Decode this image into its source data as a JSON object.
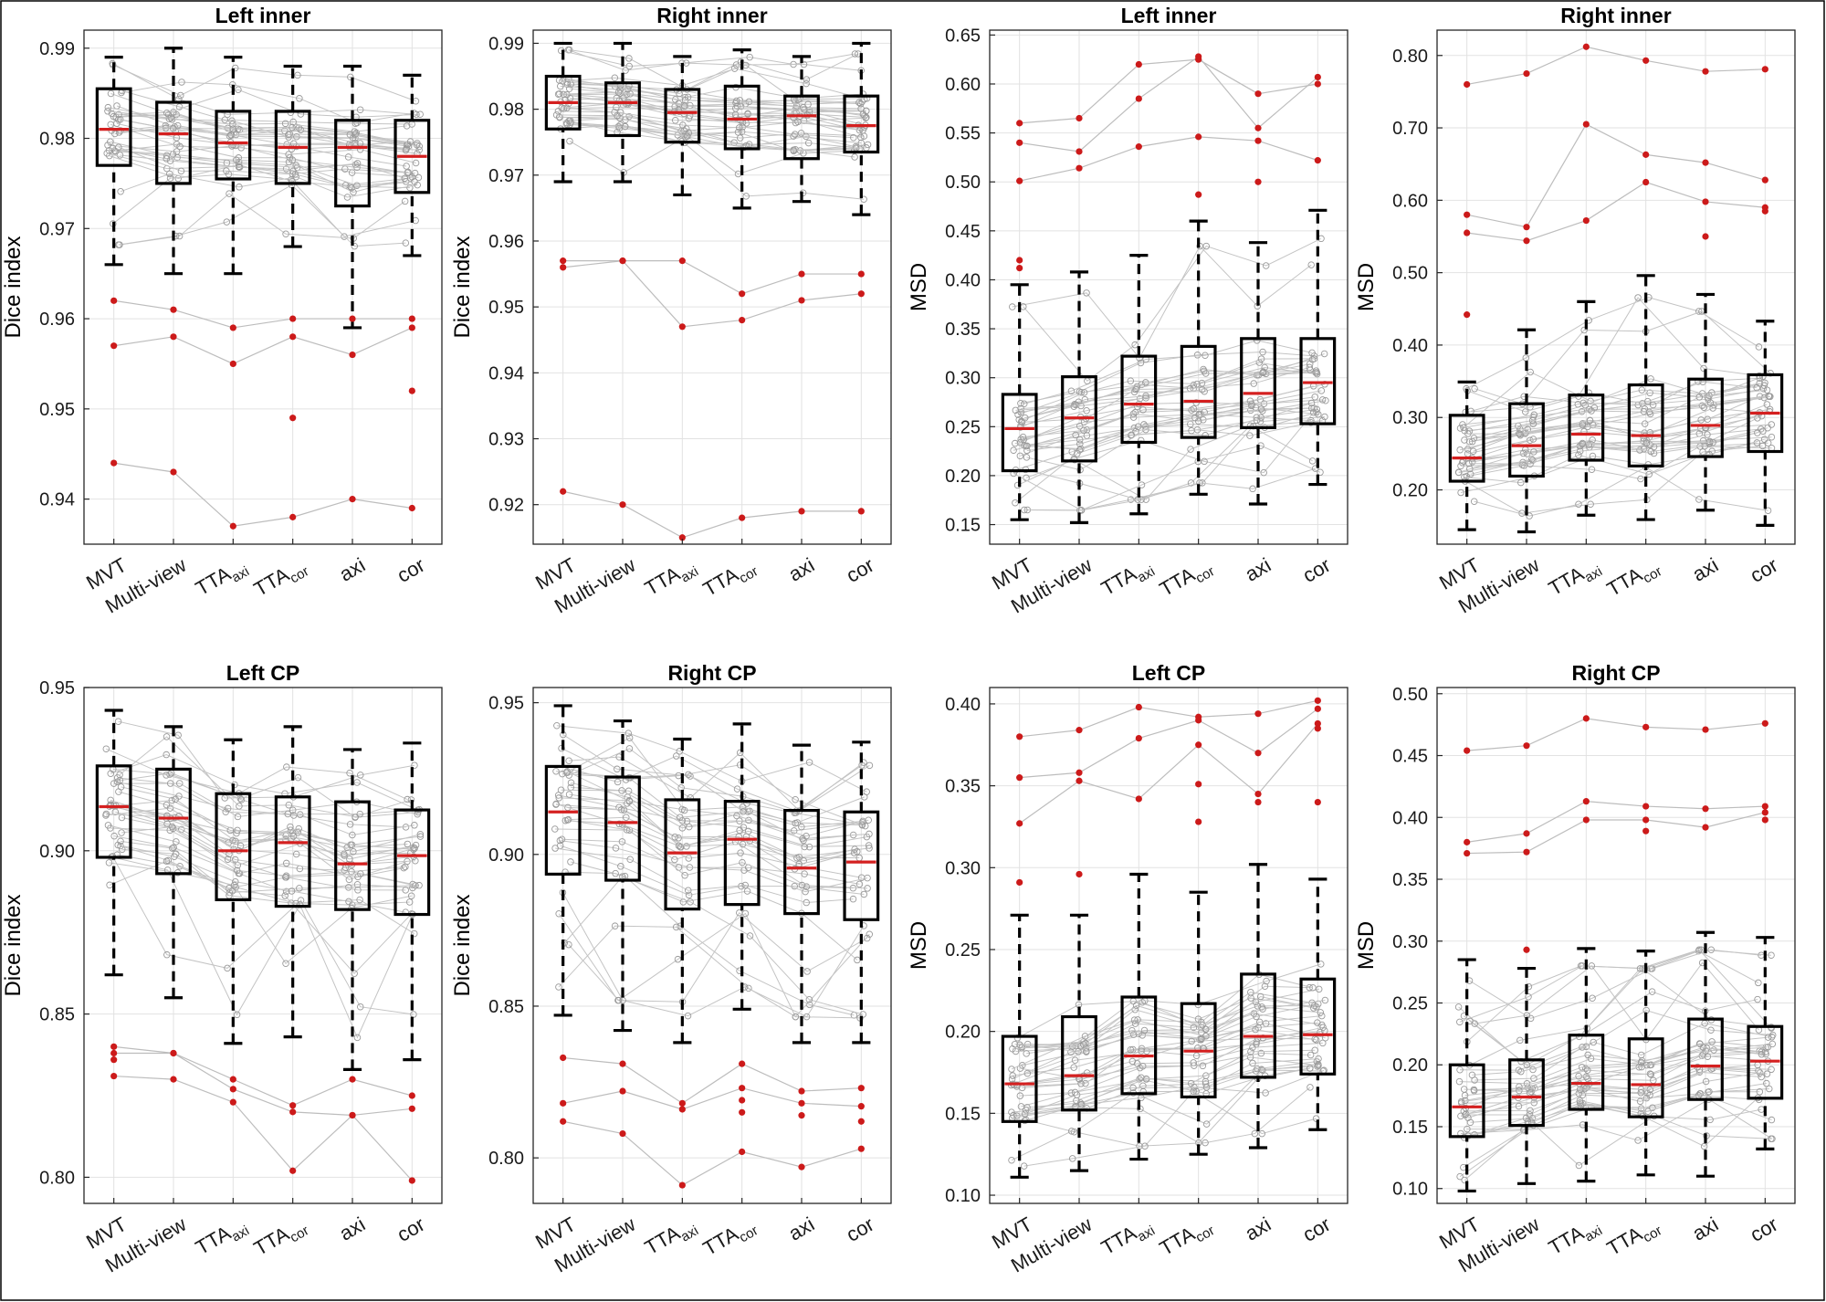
{
  "figure": {
    "frame": true
  },
  "chart_data": [
    {
      "type": "box",
      "title": "Left inner",
      "ylabel": "Dice index",
      "ylim": [
        0.935,
        0.992
      ],
      "yticks": [
        "0.94",
        "0.95",
        "0.96",
        "0.97",
        "0.98",
        "0.99"
      ],
      "categories": [
        {
          "base": "MVT",
          "sub": ""
        },
        {
          "base": "Multi-view",
          "sub": ""
        },
        {
          "base": "TTA",
          "sub": "axi"
        },
        {
          "base": "TTA",
          "sub": "cor"
        },
        {
          "base": "axi",
          "sub": ""
        },
        {
          "base": "cor",
          "sub": ""
        }
      ],
      "boxes": [
        {
          "low": 0.966,
          "q1": 0.977,
          "median": 0.981,
          "q3": 0.9855,
          "high": 0.989
        },
        {
          "low": 0.965,
          "q1": 0.975,
          "median": 0.9805,
          "q3": 0.984,
          "high": 0.99
        },
        {
          "low": 0.965,
          "q1": 0.9755,
          "median": 0.9795,
          "q3": 0.983,
          "high": 0.989
        },
        {
          "low": 0.968,
          "q1": 0.975,
          "median": 0.979,
          "q3": 0.983,
          "high": 0.988
        },
        {
          "low": 0.959,
          "q1": 0.9725,
          "median": 0.979,
          "q3": 0.982,
          "high": 0.988
        },
        {
          "low": 0.967,
          "q1": 0.974,
          "median": 0.978,
          "q3": 0.982,
          "high": 0.987
        }
      ],
      "outlier_series": [
        [
          0.962,
          0.961,
          0.959,
          0.96,
          0.96,
          0.96
        ],
        [
          0.957,
          0.958,
          0.955,
          0.958,
          0.956,
          0.959
        ],
        [
          0.944,
          0.943,
          0.937,
          0.938,
          0.94,
          0.939
        ]
      ],
      "extra_outliers": [
        [
          3,
          0.949
        ],
        [
          5,
          0.952
        ]
      ]
    },
    {
      "type": "box",
      "title": "Right inner",
      "ylabel": "Dice index",
      "ylim": [
        0.914,
        0.992
      ],
      "yticks": [
        "0.92",
        "0.93",
        "0.94",
        "0.95",
        "0.96",
        "0.97",
        "0.98",
        "0.99"
      ],
      "categories": [
        {
          "base": "MVT",
          "sub": ""
        },
        {
          "base": "Multi-view",
          "sub": ""
        },
        {
          "base": "TTA",
          "sub": "axi"
        },
        {
          "base": "TTA",
          "sub": "cor"
        },
        {
          "base": "axi",
          "sub": ""
        },
        {
          "base": "cor",
          "sub": ""
        }
      ],
      "boxes": [
        {
          "low": 0.969,
          "q1": 0.977,
          "median": 0.981,
          "q3": 0.985,
          "high": 0.99
        },
        {
          "low": 0.969,
          "q1": 0.976,
          "median": 0.981,
          "q3": 0.984,
          "high": 0.99
        },
        {
          "low": 0.967,
          "q1": 0.975,
          "median": 0.9795,
          "q3": 0.983,
          "high": 0.988
        },
        {
          "low": 0.965,
          "q1": 0.974,
          "median": 0.9785,
          "q3": 0.9835,
          "high": 0.989
        },
        {
          "low": 0.966,
          "q1": 0.9725,
          "median": 0.979,
          "q3": 0.982,
          "high": 0.988
        },
        {
          "low": 0.964,
          "q1": 0.9735,
          "median": 0.9775,
          "q3": 0.982,
          "high": 0.99
        }
      ],
      "outlier_series": [
        [
          0.957,
          0.957,
          0.957,
          0.952,
          0.955,
          0.955
        ],
        [
          0.956,
          0.957,
          0.947,
          0.948,
          0.951,
          0.952
        ],
        [
          0.922,
          0.92,
          0.915,
          0.918,
          0.919,
          0.919
        ]
      ],
      "extra_outliers": []
    },
    {
      "type": "box",
      "title": "Left inner",
      "ylabel": "MSD",
      "ylim": [
        0.13,
        0.655
      ],
      "yticks": [
        "0.15",
        "0.20",
        "0.25",
        "0.30",
        "0.35",
        "0.40",
        "0.45",
        "0.50",
        "0.55",
        "0.60",
        "0.65"
      ],
      "categories": [
        {
          "base": "MVT",
          "sub": ""
        },
        {
          "base": "Multi-view",
          "sub": ""
        },
        {
          "base": "TTA",
          "sub": "axi"
        },
        {
          "base": "TTA",
          "sub": "cor"
        },
        {
          "base": "axi",
          "sub": ""
        },
        {
          "base": "cor",
          "sub": ""
        }
      ],
      "boxes": [
        {
          "low": 0.155,
          "q1": 0.205,
          "median": 0.248,
          "q3": 0.283,
          "high": 0.395
        },
        {
          "low": 0.152,
          "q1": 0.215,
          "median": 0.259,
          "q3": 0.301,
          "high": 0.408
        },
        {
          "low": 0.161,
          "q1": 0.234,
          "median": 0.273,
          "q3": 0.322,
          "high": 0.425
        },
        {
          "low": 0.181,
          "q1": 0.239,
          "median": 0.276,
          "q3": 0.332,
          "high": 0.46
        },
        {
          "low": 0.171,
          "q1": 0.249,
          "median": 0.284,
          "q3": 0.34,
          "high": 0.438
        },
        {
          "low": 0.191,
          "q1": 0.253,
          "median": 0.295,
          "q3": 0.34,
          "high": 0.471
        }
      ],
      "outlier_series": [
        [
          0.56,
          0.565,
          0.62,
          0.625,
          0.59,
          0.6
        ],
        [
          0.54,
          0.531,
          0.585,
          0.628,
          0.555,
          0.607
        ],
        [
          0.501,
          0.514,
          0.536,
          0.546,
          0.542,
          0.522
        ]
      ],
      "extra_outliers": [
        [
          0,
          0.42
        ],
        [
          0,
          0.412
        ],
        [
          3,
          0.487
        ],
        [
          4,
          0.5
        ]
      ]
    },
    {
      "type": "box",
      "title": "Right inner",
      "ylabel": "MSD",
      "ylim": [
        0.125,
        0.835
      ],
      "yticks": [
        "0.20",
        "0.30",
        "0.40",
        "0.50",
        "0.60",
        "0.70",
        "0.80"
      ],
      "categories": [
        {
          "base": "MVT",
          "sub": ""
        },
        {
          "base": "Multi-view",
          "sub": ""
        },
        {
          "base": "TTA",
          "sub": "axi"
        },
        {
          "base": "TTA",
          "sub": "cor"
        },
        {
          "base": "axi",
          "sub": ""
        },
        {
          "base": "cor",
          "sub": ""
        }
      ],
      "boxes": [
        {
          "low": 0.145,
          "q1": 0.212,
          "median": 0.244,
          "q3": 0.303,
          "high": 0.349
        },
        {
          "low": 0.142,
          "q1": 0.219,
          "median": 0.261,
          "q3": 0.319,
          "high": 0.421
        },
        {
          "low": 0.165,
          "q1": 0.241,
          "median": 0.277,
          "q3": 0.331,
          "high": 0.46
        },
        {
          "low": 0.159,
          "q1": 0.233,
          "median": 0.275,
          "q3": 0.345,
          "high": 0.496
        },
        {
          "low": 0.172,
          "q1": 0.246,
          "median": 0.289,
          "q3": 0.353,
          "high": 0.47
        },
        {
          "low": 0.151,
          "q1": 0.253,
          "median": 0.306,
          "q3": 0.359,
          "high": 0.433
        }
      ],
      "outlier_series": [
        [
          0.76,
          0.775,
          0.812,
          0.793,
          0.778,
          0.781
        ],
        [
          0.58,
          0.563,
          0.705,
          0.663,
          0.652,
          0.628
        ],
        [
          0.555,
          0.544,
          0.572,
          0.625,
          0.598,
          0.59
        ]
      ],
      "extra_outliers": [
        [
          0,
          0.442
        ],
        [
          4,
          0.55
        ],
        [
          5,
          0.585
        ]
      ]
    },
    {
      "type": "box",
      "title": "Left CP",
      "ylabel": "Dice index",
      "ylim": [
        0.792,
        0.95
      ],
      "yticks": [
        "0.80",
        "0.85",
        "0.90",
        "0.95"
      ],
      "categories": [
        {
          "base": "MVT",
          "sub": ""
        },
        {
          "base": "Multi-view",
          "sub": ""
        },
        {
          "base": "TTA",
          "sub": "axi"
        },
        {
          "base": "TTA",
          "sub": "cor"
        },
        {
          "base": "axi",
          "sub": ""
        },
        {
          "base": "cor",
          "sub": ""
        }
      ],
      "boxes": [
        {
          "low": 0.862,
          "q1": 0.898,
          "median": 0.9135,
          "q3": 0.926,
          "high": 0.943
        },
        {
          "low": 0.855,
          "q1": 0.893,
          "median": 0.91,
          "q3": 0.925,
          "high": 0.938
        },
        {
          "low": 0.841,
          "q1": 0.885,
          "median": 0.9,
          "q3": 0.9175,
          "high": 0.934
        },
        {
          "low": 0.843,
          "q1": 0.883,
          "median": 0.9025,
          "q3": 0.9165,
          "high": 0.938
        },
        {
          "low": 0.833,
          "q1": 0.882,
          "median": 0.896,
          "q3": 0.915,
          "high": 0.931
        },
        {
          "low": 0.836,
          "q1": 0.8805,
          "median": 0.8985,
          "q3": 0.9125,
          "high": 0.933
        }
      ],
      "outlier_series": [
        [
          0.84,
          0.838,
          0.83,
          0.822,
          0.83,
          0.825
        ],
        [
          0.838,
          0.838,
          0.827,
          0.82,
          0.819,
          0.821
        ],
        [
          0.831,
          0.83,
          0.823,
          0.802,
          0.819,
          0.799
        ]
      ],
      "extra_outliers": [
        [
          0,
          0.836
        ]
      ]
    },
    {
      "type": "box",
      "title": "Right CP",
      "ylabel": "Dice index",
      "ylim": [
        0.785,
        0.955
      ],
      "yticks": [
        "0.80",
        "0.85",
        "0.90",
        "0.95"
      ],
      "categories": [
        {
          "base": "MVT",
          "sub": ""
        },
        {
          "base": "Multi-view",
          "sub": ""
        },
        {
          "base": "TTA",
          "sub": "axi"
        },
        {
          "base": "TTA",
          "sub": "cor"
        },
        {
          "base": "axi",
          "sub": ""
        },
        {
          "base": "cor",
          "sub": ""
        }
      ],
      "boxes": [
        {
          "low": 0.847,
          "q1": 0.8935,
          "median": 0.914,
          "q3": 0.929,
          "high": 0.949
        },
        {
          "low": 0.842,
          "q1": 0.8915,
          "median": 0.9105,
          "q3": 0.9255,
          "high": 0.944
        },
        {
          "low": 0.838,
          "q1": 0.882,
          "median": 0.9005,
          "q3": 0.918,
          "high": 0.938
        },
        {
          "low": 0.849,
          "q1": 0.8835,
          "median": 0.905,
          "q3": 0.9175,
          "high": 0.943
        },
        {
          "low": 0.838,
          "q1": 0.8805,
          "median": 0.8955,
          "q3": 0.9145,
          "high": 0.936
        },
        {
          "low": 0.838,
          "q1": 0.8785,
          "median": 0.8975,
          "q3": 0.914,
          "high": 0.937
        }
      ],
      "outlier_series": [
        [
          0.833,
          0.831,
          0.818,
          0.831,
          0.822,
          0.823
        ],
        [
          0.818,
          0.822,
          0.816,
          0.823,
          0.818,
          0.817
        ],
        [
          0.812,
          0.808,
          0.791,
          0.802,
          0.797,
          0.803
        ]
      ],
      "extra_outliers": [
        [
          3,
          0.819
        ],
        [
          3,
          0.815
        ],
        [
          4,
          0.814
        ],
        [
          5,
          0.812
        ]
      ]
    },
    {
      "type": "box",
      "title": "Left CP",
      "ylabel": "MSD",
      "ylim": [
        0.095,
        0.41
      ],
      "yticks": [
        "0.10",
        "0.15",
        "0.20",
        "0.25",
        "0.30",
        "0.35",
        "0.40"
      ],
      "categories": [
        {
          "base": "MVT",
          "sub": ""
        },
        {
          "base": "Multi-view",
          "sub": ""
        },
        {
          "base": "TTA",
          "sub": "axi"
        },
        {
          "base": "TTA",
          "sub": "cor"
        },
        {
          "base": "axi",
          "sub": ""
        },
        {
          "base": "cor",
          "sub": ""
        }
      ],
      "boxes": [
        {
          "low": 0.111,
          "q1": 0.145,
          "median": 0.168,
          "q3": 0.197,
          "high": 0.271
        },
        {
          "low": 0.115,
          "q1": 0.152,
          "median": 0.173,
          "q3": 0.209,
          "high": 0.271
        },
        {
          "low": 0.122,
          "q1": 0.162,
          "median": 0.185,
          "q3": 0.221,
          "high": 0.296
        },
        {
          "low": 0.125,
          "q1": 0.16,
          "median": 0.188,
          "q3": 0.217,
          "high": 0.285
        },
        {
          "low": 0.129,
          "q1": 0.172,
          "median": 0.197,
          "q3": 0.235,
          "high": 0.302
        },
        {
          "low": 0.14,
          "q1": 0.174,
          "median": 0.198,
          "q3": 0.232,
          "high": 0.293
        }
      ],
      "outlier_series": [
        [
          0.38,
          0.384,
          0.398,
          0.392,
          0.394,
          0.402
        ],
        [
          0.355,
          0.358,
          0.379,
          0.39,
          0.37,
          0.397
        ],
        [
          0.327,
          0.353,
          0.342,
          0.375,
          0.345,
          0.388
        ]
      ],
      "extra_outliers": [
        [
          0,
          0.291
        ],
        [
          1,
          0.296
        ],
        [
          3,
          0.351
        ],
        [
          3,
          0.328
        ],
        [
          4,
          0.34
        ],
        [
          5,
          0.385
        ],
        [
          5,
          0.34
        ]
      ]
    },
    {
      "type": "box",
      "title": "Right CP",
      "ylabel": "MSD",
      "ylim": [
        0.088,
        0.505
      ],
      "yticks": [
        "0.10",
        "0.15",
        "0.20",
        "0.25",
        "0.30",
        "0.35",
        "0.40",
        "0.45",
        "0.50"
      ],
      "categories": [
        {
          "base": "MVT",
          "sub": ""
        },
        {
          "base": "Multi-view",
          "sub": ""
        },
        {
          "base": "TTA",
          "sub": "axi"
        },
        {
          "base": "TTA",
          "sub": "cor"
        },
        {
          "base": "axi",
          "sub": ""
        },
        {
          "base": "cor",
          "sub": ""
        }
      ],
      "boxes": [
        {
          "low": 0.098,
          "q1": 0.142,
          "median": 0.166,
          "q3": 0.2,
          "high": 0.285
        },
        {
          "low": 0.104,
          "q1": 0.151,
          "median": 0.174,
          "q3": 0.204,
          "high": 0.278
        },
        {
          "low": 0.106,
          "q1": 0.164,
          "median": 0.185,
          "q3": 0.224,
          "high": 0.294
        },
        {
          "low": 0.111,
          "q1": 0.158,
          "median": 0.184,
          "q3": 0.221,
          "high": 0.292
        },
        {
          "low": 0.11,
          "q1": 0.172,
          "median": 0.199,
          "q3": 0.237,
          "high": 0.307
        },
        {
          "low": 0.132,
          "q1": 0.173,
          "median": 0.203,
          "q3": 0.231,
          "high": 0.303
        }
      ],
      "outlier_series": [
        [
          0.454,
          0.458,
          0.48,
          0.473,
          0.471,
          0.476
        ],
        [
          0.38,
          0.387,
          0.413,
          0.409,
          0.407,
          0.409
        ],
        [
          0.371,
          0.372,
          0.398,
          0.398,
          0.392,
          0.404
        ]
      ],
      "extra_outliers": [
        [
          1,
          0.293
        ],
        [
          3,
          0.389
        ],
        [
          5,
          0.398
        ]
      ]
    }
  ]
}
